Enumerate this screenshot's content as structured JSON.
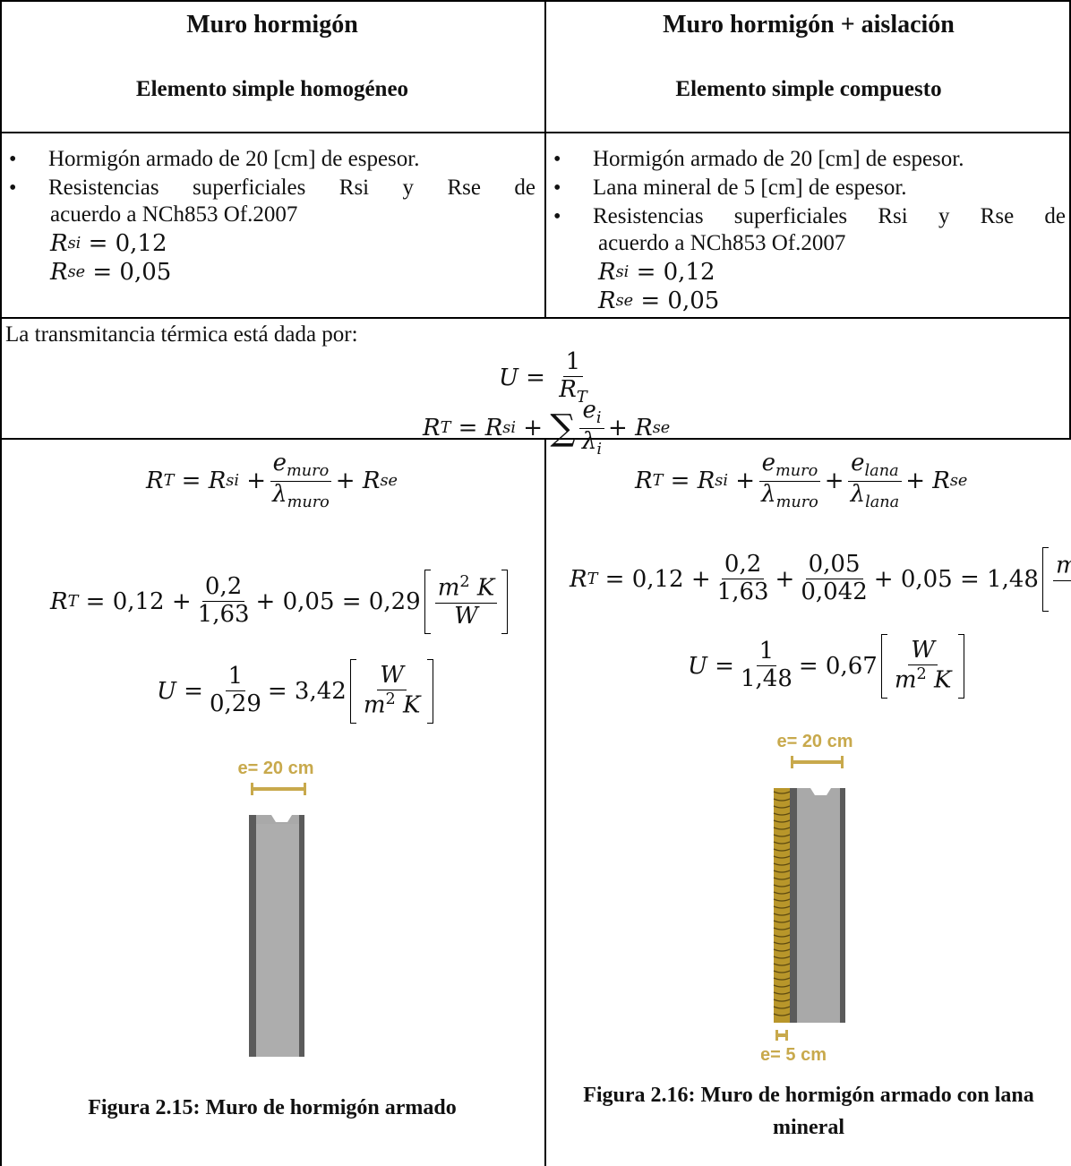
{
  "left": {
    "title": "Muro hormigón",
    "subtitle": "Elemento simple homogéneo",
    "bullets": [
      "Hormigón armado de 20 [cm] de espesor.",
      "Resistencias superficiales Rsi y Rse de",
      "acuerdo a NCh853 Of.2007"
    ],
    "rsi_value": "= 0,12",
    "rse_value": "= 0,05",
    "eq_general_num": "e",
    "eq_calc_values": {
      "a": "0,12 +",
      "num": "0,2",
      "den": "1,63",
      "b": "+ 0,05 = 0,29"
    },
    "eq_u_values": {
      "num": "1",
      "den": "0,29",
      "result": "= 3,42"
    },
    "dim_label": "e= 20 cm",
    "caption": "Figura 2.15: Muro de hormigón armado"
  },
  "right": {
    "title": "Muro hormigón + aislación",
    "subtitle": "Elemento simple compuesto",
    "bullets": [
      "Hormigón armado de 20 [cm] de espesor.",
      "Lana mineral de 5 [cm] de espesor.",
      "Resistencias superficiales Rsi y Rse de",
      "acuerdo a NCh853 Of.2007"
    ],
    "rsi_value": "= 0,12",
    "rse_value": "= 0,05",
    "eq_calc_values": {
      "a": "0,12 +",
      "num1": "0,2",
      "den1": "1,63",
      "plus": "+",
      "num2": "0,05",
      "den2": "0,042",
      "b": "+ 0,05 = 1,48"
    },
    "eq_u_values": {
      "num": "1",
      "den": "1,48",
      "result": "= 0,67"
    },
    "dim_label_top": "e= 20 cm",
    "dim_label_bottom": "e= 5 cm",
    "caption_line1": "Figura 2.16: Muro de hormigón armado con lana",
    "caption_line2": "mineral"
  },
  "shared": {
    "intro": "La transmitancia térmica está dada por:"
  },
  "colors": {
    "dimension": "#c8a94c",
    "concrete": "#a9a9a9",
    "concrete_edge": "#5b5b5b",
    "insulation": "#b8962a"
  }
}
